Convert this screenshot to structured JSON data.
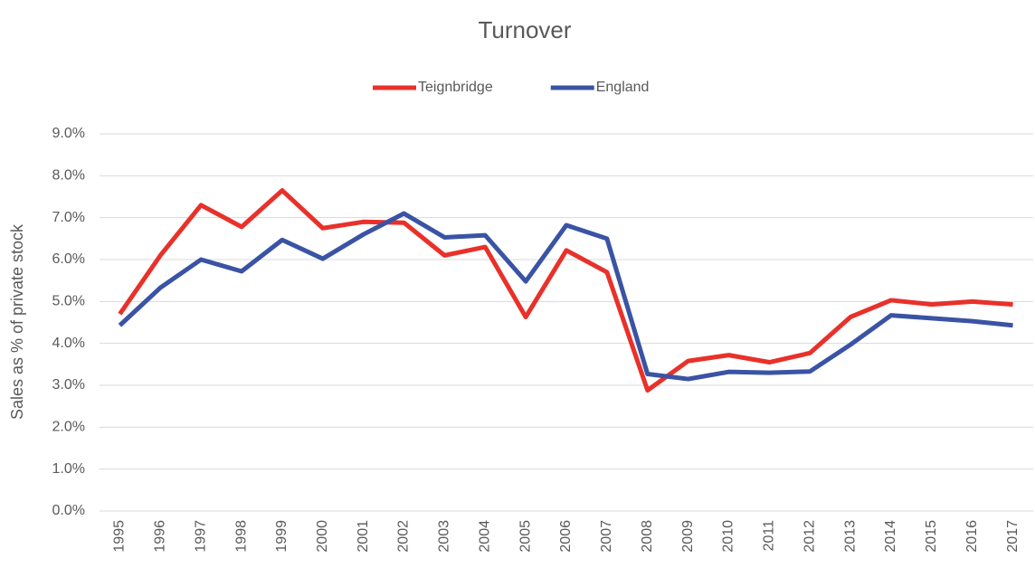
{
  "chart_data": {
    "type": "line",
    "title": "Turnover",
    "y_label": "Sales as % of private stock",
    "categories": [
      "1995",
      "1996",
      "1997",
      "1998",
      "1999",
      "2000",
      "2001",
      "2002",
      "2003",
      "2004",
      "2005",
      "2006",
      "2007",
      "2008",
      "2009",
      "2010",
      "2011",
      "2012",
      "2013",
      "2014",
      "2015",
      "2016",
      "2017"
    ],
    "series": [
      {
        "name": "Teignbridge",
        "color": "#e8312a",
        "values": [
          4.7,
          6.1,
          7.3,
          6.78,
          7.65,
          6.75,
          6.9,
          6.88,
          6.1,
          6.3,
          4.63,
          6.22,
          5.7,
          2.88,
          3.58,
          3.72,
          3.55,
          3.77,
          4.63,
          5.03,
          4.93,
          5.0,
          4.93
        ]
      },
      {
        "name": "England",
        "color": "#3a53a4",
        "values": [
          4.43,
          5.33,
          6.0,
          5.72,
          6.47,
          6.02,
          6.6,
          7.1,
          6.53,
          6.58,
          5.48,
          6.82,
          6.5,
          3.27,
          3.15,
          3.32,
          3.3,
          3.33,
          3.97,
          4.67,
          4.6,
          4.53,
          4.43
        ]
      }
    ],
    "ylim": [
      0,
      9
    ],
    "yticks": [
      {
        "value": 0,
        "label": "0.0%"
      },
      {
        "value": 1,
        "label": "1.0%"
      },
      {
        "value": 2,
        "label": "2.0%"
      },
      {
        "value": 3,
        "label": "3.0%"
      },
      {
        "value": 4,
        "label": "4.0%"
      },
      {
        "value": 5,
        "label": "5.0%"
      },
      {
        "value": 6,
        "label": "6.0%"
      },
      {
        "value": 7,
        "label": "7.0%"
      },
      {
        "value": 8,
        "label": "8.0%"
      },
      {
        "value": 9,
        "label": "9.0%"
      }
    ],
    "grid": true,
    "legend": "top"
  }
}
